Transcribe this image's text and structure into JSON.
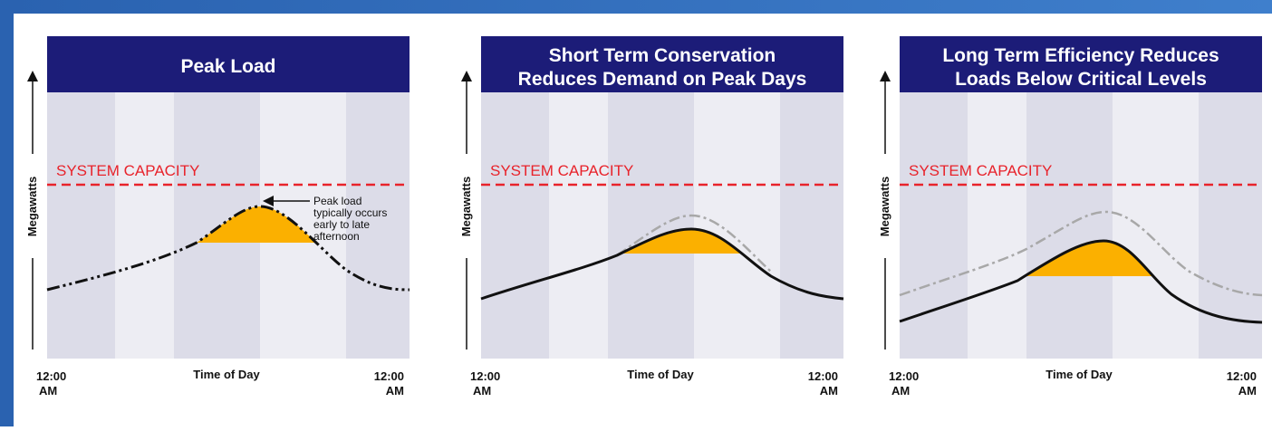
{
  "panels": [
    {
      "title_lines": [
        "Peak Load"
      ],
      "y_axis_label": "Megawatts",
      "capacity_label": "SYSTEM CAPACITY",
      "x_axis_label": "Time of Day",
      "x_start": [
        "12:00",
        "AM"
      ],
      "x_end": [
        "12:00",
        "AM"
      ],
      "annotation": [
        "Peak load",
        "typically occurs",
        "early to late",
        "afternoon"
      ]
    },
    {
      "title_lines": [
        "Short Term Conservation",
        "Reduces Demand on Peak Days"
      ],
      "y_axis_label": "Megawatts",
      "capacity_label": "SYSTEM CAPACITY",
      "x_axis_label": "Time of Day",
      "x_start": [
        "12:00",
        "AM"
      ],
      "x_end": [
        "12:00",
        "AM"
      ]
    },
    {
      "title_lines": [
        "Long Term Efficiency Reduces",
        "Loads Below Critical Levels"
      ],
      "y_axis_label": "Megawatts",
      "capacity_label": "SYSTEM CAPACITY",
      "x_axis_label": "Time of Day",
      "x_start": [
        "12:00",
        "AM"
      ],
      "x_end": [
        "12:00",
        "AM"
      ]
    }
  ]
}
